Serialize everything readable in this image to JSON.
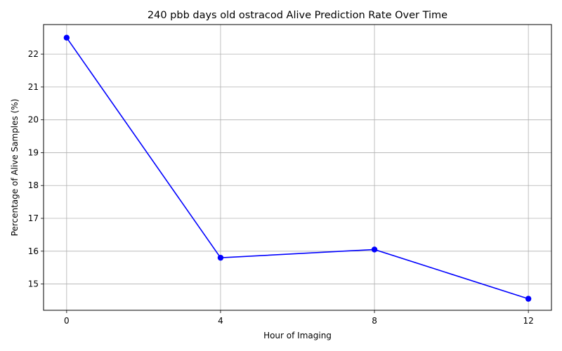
{
  "chart_data": {
    "type": "line",
    "title": "240 pbb days old ostracod Alive Prediction Rate Over Time",
    "xlabel": "Hour of Imaging",
    "ylabel": "Percentage of Alive Samples (%)",
    "x": [
      0,
      4,
      8,
      12
    ],
    "xticks": [
      "0",
      "4",
      "8",
      "12"
    ],
    "xlim": [
      -0.6,
      12.6
    ],
    "yticks": [
      15,
      16,
      17,
      18,
      19,
      20,
      21,
      22
    ],
    "ylim": [
      14.2,
      22.9
    ],
    "grid": true,
    "series": [
      {
        "values": [
          22.5,
          15.8,
          16.05,
          14.55
        ],
        "color": "#0000ff",
        "marker": "circle"
      }
    ]
  }
}
